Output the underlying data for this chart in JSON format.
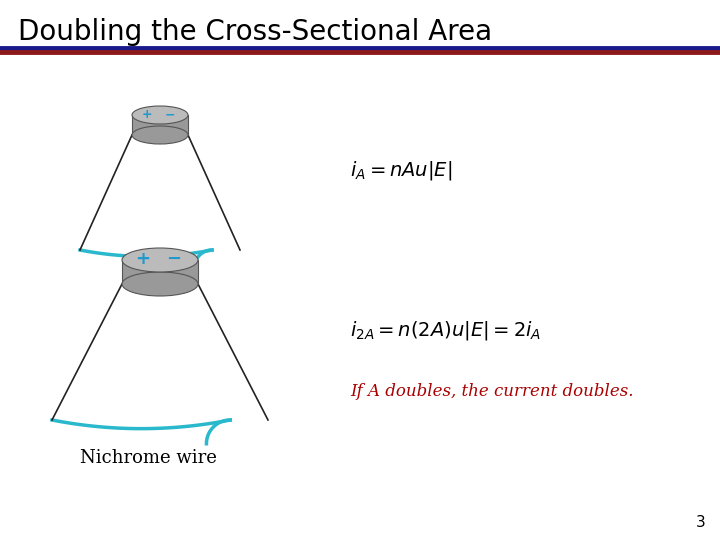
{
  "title": "Doubling the Cross-Sectional Area",
  "title_fontsize": 20,
  "title_fontweight": "normal",
  "bg_color": "#ffffff",
  "sep_blue": "#1a1a8c",
  "sep_red": "#8c1a1a",
  "formula1": "$i_A = nAu|E|$",
  "formula2": "$i_{2A} = n(2A)u|E| = 2i_A$",
  "caption": "If A doubles, the current doubles.",
  "caption_color": "#aa0000",
  "caption_fontsize": 12,
  "wire_label": "Nichrome wire",
  "wire_label_fontsize": 13,
  "page_number": "3",
  "wire_color": "#2ab8cc",
  "wire_lw": 2.5,
  "cone_color": "#222222",
  "cone_lw": 1.2,
  "cyl_side_color": "#999999",
  "cyl_top_color": "#bbbbbb",
  "cyl_edge_color": "#555555",
  "plus_color": "#2299cc",
  "minus_color": "#2299cc"
}
